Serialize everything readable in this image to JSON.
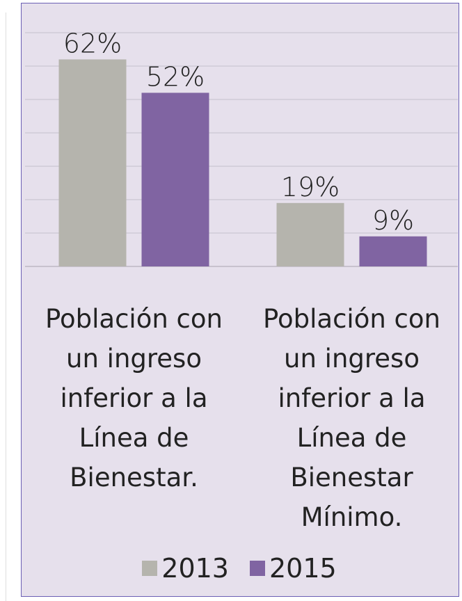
{
  "chart_data": {
    "type": "bar",
    "categories": [
      "Población con un ingreso inferior a la Línea de Bienestar.",
      "Población con un ingreso inferior a la Línea de Bienestar Mínimo."
    ],
    "series": [
      {
        "name": "2013",
        "color": "#b5b4ad",
        "values": [
          62,
          19
        ],
        "value_labels": [
          "62%",
          "19%"
        ]
      },
      {
        "name": "2015",
        "color": "#8064a2",
        "values": [
          52,
          9
        ],
        "value_labels": [
          "52%",
          "9%"
        ]
      }
    ],
    "ylim": [
      0,
      70
    ],
    "yticks": [
      0,
      10,
      20,
      30,
      40,
      50,
      60,
      70
    ],
    "grid": true,
    "legend": "bottom"
  }
}
